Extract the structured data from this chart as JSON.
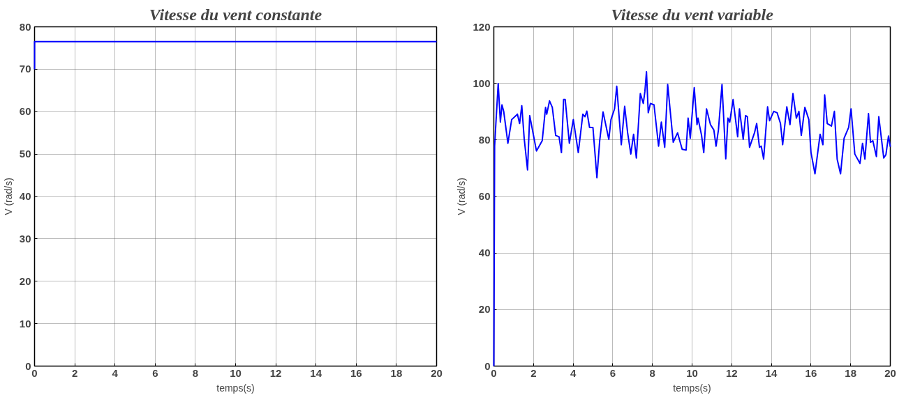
{
  "chart_data": [
    {
      "type": "line",
      "title": "Vitesse du vent constante",
      "xlabel": "temps(s)",
      "ylabel": "V (rad/s)",
      "xlim": [
        0,
        20
      ],
      "ylim": [
        0,
        80
      ],
      "xticks": [
        0,
        2,
        4,
        6,
        8,
        10,
        12,
        14,
        16,
        18,
        20
      ],
      "yticks": [
        0,
        10,
        20,
        30,
        40,
        50,
        60,
        70,
        80
      ],
      "grid": true,
      "series": [
        {
          "color": "#0000ff",
          "x": [
            0,
            0,
            20
          ],
          "values": [
            70,
            76.5,
            76.5
          ]
        }
      ]
    },
    {
      "type": "line",
      "title": "Vitesse du vent variable",
      "xlabel": "temps(s)",
      "ylabel": "V (rad/s)",
      "xlim": [
        0,
        20
      ],
      "ylim": [
        0,
        120
      ],
      "xticks": [
        0,
        2,
        4,
        6,
        8,
        10,
        12,
        14,
        16,
        18,
        20
      ],
      "yticks": [
        0,
        20,
        40,
        60,
        80,
        100,
        120
      ],
      "grid": true,
      "series": [
        {
          "color": "#0000ff",
          "x": [
            0,
            0.04,
            0.1,
            0.22,
            0.33,
            0.41,
            0.5,
            0.71,
            0.9,
            1.19,
            1.3,
            1.41,
            1.53,
            1.7,
            1.81,
            2.15,
            2.44,
            2.61,
            2.67,
            2.81,
            2.95,
            3.12,
            3.29,
            3.41,
            3.52,
            3.6,
            3.81,
            4.01,
            4.26,
            4.49,
            4.6,
            4.69,
            4.83,
            5.0,
            5.2,
            5.34,
            5.51,
            5.8,
            5.91,
            6.09,
            6.2,
            6.43,
            6.6,
            6.75,
            6.91,
            7.05,
            7.19,
            7.39,
            7.54,
            7.62,
            7.7,
            7.79,
            7.9,
            8.08,
            8.31,
            8.45,
            8.62,
            8.77,
            9.05,
            9.27,
            9.5,
            9.7,
            9.8,
            9.91,
            10.11,
            10.25,
            10.3,
            10.48,
            10.59,
            10.73,
            10.93,
            11.1,
            11.21,
            11.33,
            11.51,
            11.7,
            11.81,
            11.9,
            12.07,
            12.3,
            12.39,
            12.58,
            12.7,
            12.79,
            12.9,
            13.15,
            13.26,
            13.4,
            13.49,
            13.61,
            13.81,
            13.91,
            14.12,
            14.29,
            14.46,
            14.57,
            14.78,
            14.94,
            15.09,
            15.26,
            15.39,
            15.51,
            15.69,
            15.89,
            16.0,
            16.2,
            16.46,
            16.6,
            16.69,
            16.82,
            17.03,
            17.18,
            17.32,
            17.49,
            17.67,
            17.9,
            18.02,
            18.21,
            18.47,
            18.6,
            18.72,
            18.9,
            19.0,
            19.12,
            19.3,
            19.42,
            19.67,
            19.78,
            19.91,
            20.0
          ],
          "values": [
            0,
            77.8,
            85.4,
            99.9,
            86.3,
            92.4,
            90,
            78.8,
            87.2,
            89.1,
            85.8,
            92.1,
            80.6,
            69.4,
            88.6,
            76.1,
            79.7,
            91.5,
            89.1,
            93.8,
            91.5,
            81.6,
            81.1,
            75.5,
            94.3,
            94.3,
            78.8,
            87.2,
            75.5,
            89.1,
            88.2,
            90.2,
            84.4,
            84.4,
            66.6,
            79.7,
            89.9,
            80.2,
            87.2,
            91,
            99,
            78.3,
            91.9,
            82.5,
            75,
            82,
            73.6,
            96.4,
            92.9,
            97.1,
            104.1,
            89.6,
            92.9,
            92.4,
            77.8,
            86.3,
            77.4,
            99.6,
            79.2,
            82.5,
            76.7,
            76.4,
            87.7,
            80.6,
            98.5,
            85.4,
            87.7,
            81.6,
            75.5,
            91,
            85.4,
            83.5,
            77.8,
            83.5,
            99.6,
            73.3,
            87.7,
            86.3,
            94.3,
            81.1,
            91,
            80.2,
            88.6,
            88.2,
            77.4,
            82.5,
            85.8,
            77.4,
            77.8,
            73.2,
            91.7,
            86.8,
            90.1,
            89.6,
            85.8,
            78.3,
            91.7,
            85.4,
            96.4,
            87.7,
            90.1,
            81.6,
            91.5,
            87.2,
            75.5,
            68,
            82,
            78.3,
            95.9,
            85.8,
            84.9,
            90.1,
            73.2,
            68,
            80.6,
            84.4,
            91,
            75,
            71.7,
            78.8,
            73.2,
            89.3,
            79.2,
            79.7,
            74.1,
            88.2,
            73.6,
            74.8,
            81.4,
            77.6
          ]
        }
      ]
    }
  ]
}
